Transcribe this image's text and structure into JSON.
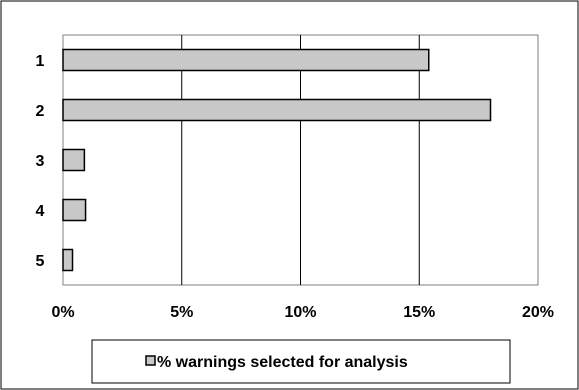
{
  "chart_data": {
    "type": "bar",
    "orientation": "horizontal",
    "categories": [
      "1",
      "2",
      "3",
      "4",
      "5"
    ],
    "series": [
      {
        "name": "% warnings selected for analysis",
        "values": [
          15.4,
          18.0,
          0.9,
          0.95,
          0.4
        ],
        "color": "#c8c8c8"
      }
    ],
    "xlim": [
      0,
      20
    ],
    "xticks": [
      0,
      5,
      10,
      15,
      20
    ],
    "xtick_labels": [
      "0%",
      "5%",
      "10%",
      "15%",
      "20%"
    ],
    "grid": "vertical",
    "legend_position": "bottom",
    "title": "",
    "xlabel": "",
    "ylabel": ""
  },
  "legend": {
    "label": "% warnings selected for analysis"
  }
}
